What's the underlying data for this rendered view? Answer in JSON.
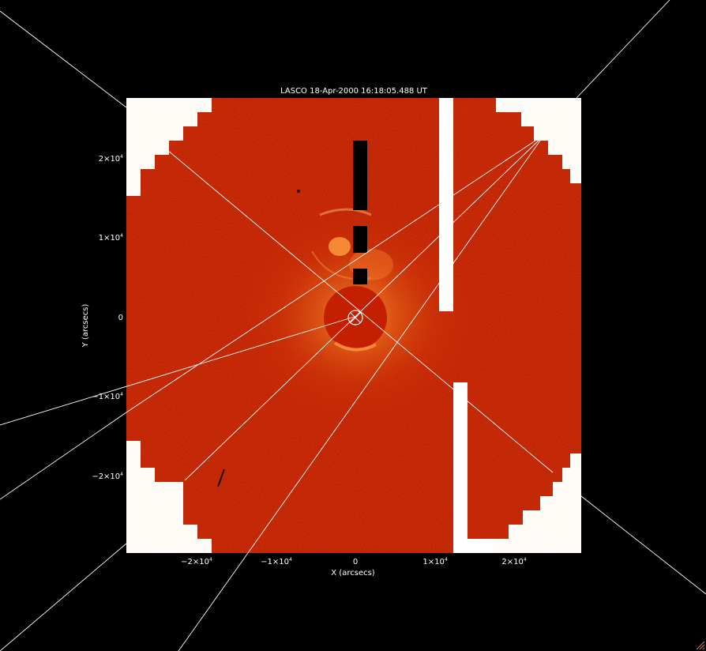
{
  "title": "LASCO  18-Apr-2000 16:18:05.488 UT",
  "x_axis_label": "X (arcsecs)",
  "y_axis_label": "Y (arcsecs)",
  "x_ticks": [
    {
      "base": "−2×10",
      "exp": "4"
    },
    {
      "base": "−1×10",
      "exp": "4"
    },
    {
      "base": "0",
      "exp": ""
    },
    {
      "base": "1×10",
      "exp": "4"
    },
    {
      "base": "2×10",
      "exp": "4"
    }
  ],
  "y_ticks": [
    {
      "base": "2×10",
      "exp": "4"
    },
    {
      "base": "1×10",
      "exp": "4"
    },
    {
      "base": "0",
      "exp": ""
    },
    {
      "base": "−1×10",
      "exp": "4"
    },
    {
      "base": "−2×10",
      "exp": "4"
    }
  ],
  "colors": {
    "background": "#000000",
    "disk_red": "#c01f00",
    "bright_orange": "#ff8a1a",
    "mask_white": "#ffffff",
    "grid_lines": "#ffffff"
  }
}
